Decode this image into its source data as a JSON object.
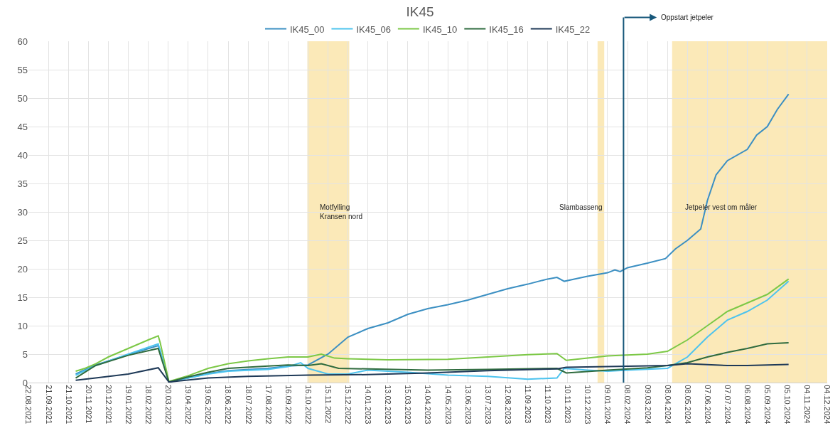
{
  "chart_data": {
    "type": "line",
    "title": "IK45",
    "series": [
      {
        "name": "IK45_00",
        "color": "#3b8fc2",
        "x": [
          "2021-11-01",
          "2021-12-01",
          "2022-01-19",
          "2022-03-05",
          "2022-03-08",
          "2022-03-21",
          "2022-04-19",
          "2022-05-19",
          "2022-06-18",
          "2022-08-17",
          "2022-09-16",
          "2022-10-16",
          "2022-11-15",
          "2022-12-15",
          "2023-01-14",
          "2023-02-13",
          "2023-03-15",
          "2023-04-14",
          "2023-05-14",
          "2023-06-13",
          "2023-07-13",
          "2023-08-12",
          "2023-09-11",
          "2023-10-11",
          "2023-10-25",
          "2023-11-05",
          "2023-11-20",
          "2023-12-10",
          "2024-01-09",
          "2024-01-20",
          "2024-01-28",
          "2024-02-08",
          "2024-03-09",
          "2024-04-05",
          "2024-04-20",
          "2024-05-08",
          "2024-05-28",
          "2024-06-07",
          "2024-06-20",
          "2024-07-07",
          "2024-08-06",
          "2024-08-20",
          "2024-09-05",
          "2024-09-20",
          "2024-10-07"
        ],
        "values": [
          1.5,
          3.1,
          4.9,
          6.5,
          5.5,
          0.1,
          0.8,
          1.6,
          2.1,
          2.5,
          2.9,
          3.1,
          5,
          8,
          9.5,
          10.5,
          12,
          13,
          13.7,
          14.5,
          15.5,
          16.5,
          17.3,
          18.2,
          18.5,
          17.8,
          18.2,
          18.7,
          19.3,
          19.8,
          19.5,
          20.2,
          21,
          21.8,
          23.5,
          25,
          27,
          32,
          36.5,
          39,
          41,
          43.5,
          45,
          48,
          50.7
        ]
      },
      {
        "name": "IK45_06",
        "color": "#4cc3ee",
        "x": [
          "2021-11-01",
          "2021-12-01",
          "2022-01-19",
          "2022-03-05",
          "2022-03-21",
          "2022-04-19",
          "2022-05-19",
          "2022-06-18",
          "2022-08-17",
          "2022-09-16",
          "2022-10-05",
          "2022-10-16",
          "2022-11-15",
          "2022-12-15",
          "2023-01-14",
          "2023-03-15",
          "2023-05-14",
          "2023-07-13",
          "2023-09-11",
          "2023-10-25",
          "2023-11-05",
          "2023-12-10",
          "2024-01-09",
          "2024-02-08",
          "2024-04-08",
          "2024-05-08",
          "2024-06-07",
          "2024-07-07",
          "2024-08-06",
          "2024-09-05",
          "2024-10-07"
        ],
        "values": [
          1.3,
          3,
          5,
          6.8,
          0.1,
          0.8,
          1.5,
          2,
          2.3,
          2.8,
          3.5,
          2.5,
          1.5,
          1.5,
          2.2,
          1.8,
          1.3,
          1.1,
          0.6,
          0.8,
          2.5,
          2.2,
          2,
          2.2,
          2.5,
          4.5,
          8,
          11,
          12.5,
          14.5,
          17.8
        ]
      },
      {
        "name": "IK45_10",
        "color": "#7cc846",
        "x": [
          "2021-11-01",
          "2021-11-15",
          "2021-12-01",
          "2021-12-20",
          "2022-01-19",
          "2022-02-18",
          "2022-03-05",
          "2022-03-08",
          "2022-03-21",
          "2022-04-19",
          "2022-05-19",
          "2022-06-18",
          "2022-07-18",
          "2022-08-17",
          "2022-09-16",
          "2022-10-16",
          "2022-11-05",
          "2022-11-25",
          "2022-12-15",
          "2023-02-13",
          "2023-05-14",
          "2023-07-13",
          "2023-09-11",
          "2023-10-25",
          "2023-11-08",
          "2023-12-10",
          "2024-01-09",
          "2024-03-09",
          "2024-04-08",
          "2024-05-08",
          "2024-06-07",
          "2024-07-07",
          "2024-08-06",
          "2024-09-05",
          "2024-10-07"
        ],
        "values": [
          2,
          2.5,
          3.3,
          4.5,
          6,
          7.5,
          8.2,
          7,
          0.2,
          1.2,
          2.5,
          3.3,
          3.8,
          4.2,
          4.5,
          4.5,
          5,
          4.3,
          4.2,
          4,
          4.1,
          4.5,
          4.9,
          5.1,
          3.9,
          4.3,
          4.7,
          5,
          5.5,
          7.5,
          10,
          12.5,
          14,
          15.5,
          18.2
        ]
      },
      {
        "name": "IK45_16",
        "color": "#2f6b3e",
        "x": [
          "2021-11-01",
          "2021-12-01",
          "2022-01-19",
          "2022-03-05",
          "2022-03-21",
          "2022-04-19",
          "2022-05-19",
          "2022-06-18",
          "2022-08-17",
          "2022-09-16",
          "2022-10-16",
          "2022-11-05",
          "2022-12-01",
          "2023-01-14",
          "2023-04-14",
          "2023-07-13",
          "2023-10-25",
          "2023-11-08",
          "2024-01-09",
          "2024-03-09",
          "2024-04-08",
          "2024-05-08",
          "2024-06-07",
          "2024-07-07",
          "2024-08-06",
          "2024-09-05",
          "2024-10-07"
        ],
        "values": [
          0.8,
          3,
          4.8,
          6,
          0.1,
          1,
          1.8,
          2.5,
          2.9,
          3.1,
          3,
          3.3,
          2.5,
          2.4,
          2.2,
          2.3,
          2.5,
          1.7,
          2.2,
          2.6,
          3,
          3.5,
          4.5,
          5.3,
          6,
          6.8,
          7
        ]
      },
      {
        "name": "IK45_22",
        "color": "#1e3957",
        "x": [
          "2021-11-01",
          "2021-12-01",
          "2022-01-19",
          "2022-03-05",
          "2022-03-21",
          "2022-05-19",
          "2022-07-18",
          "2022-10-16",
          "2023-01-14",
          "2023-04-14",
          "2023-07-13",
          "2023-10-25",
          "2023-11-08",
          "2024-01-09",
          "2024-04-08",
          "2024-05-08",
          "2024-07-07",
          "2024-08-06",
          "2024-10-07"
        ],
        "values": [
          0.4,
          0.8,
          1.5,
          2.6,
          0.1,
          0.8,
          1.1,
          1.3,
          1.4,
          1.7,
          2.1,
          2.4,
          2.7,
          2.8,
          3,
          3.3,
          3,
          3,
          3.2
        ]
      }
    ],
    "xlim": [
      "2021-08-22",
      "2024-12-04"
    ],
    "xticks": [
      {
        "value": "2021-08-22",
        "label": "22.08.2021"
      },
      {
        "value": "2021-09-21",
        "label": "21.09.2021"
      },
      {
        "value": "2021-10-21",
        "label": "21.10.2021"
      },
      {
        "value": "2021-11-20",
        "label": "20.11.2021"
      },
      {
        "value": "2021-12-20",
        "label": "20.12.2021"
      },
      {
        "value": "2022-01-19",
        "label": "19.01.2022"
      },
      {
        "value": "2022-02-18",
        "label": "18.02.2022"
      },
      {
        "value": "2022-03-20",
        "label": "20.03.2022"
      },
      {
        "value": "2022-04-19",
        "label": "19.04.2022"
      },
      {
        "value": "2022-05-19",
        "label": "19.05.2022"
      },
      {
        "value": "2022-06-18",
        "label": "18.06.2022"
      },
      {
        "value": "2022-07-18",
        "label": "18.07.2022"
      },
      {
        "value": "2022-08-17",
        "label": "17.08.2022"
      },
      {
        "value": "2022-09-16",
        "label": "16.09.2022"
      },
      {
        "value": "2022-10-16",
        "label": "16.10.2022"
      },
      {
        "value": "2022-11-15",
        "label": "15.11.2022"
      },
      {
        "value": "2022-12-15",
        "label": "15.12.2022"
      },
      {
        "value": "2023-01-14",
        "label": "14.01.2023"
      },
      {
        "value": "2023-02-13",
        "label": "13.02.2023"
      },
      {
        "value": "2023-03-15",
        "label": "15.03.2023"
      },
      {
        "value": "2023-04-14",
        "label": "14.04.2023"
      },
      {
        "value": "2023-05-14",
        "label": "14.05.2023"
      },
      {
        "value": "2023-06-13",
        "label": "13.06.2023"
      },
      {
        "value": "2023-07-13",
        "label": "13.07.2023"
      },
      {
        "value": "2023-08-12",
        "label": "12.08.2023"
      },
      {
        "value": "2023-09-11",
        "label": "11.09.2023"
      },
      {
        "value": "2023-10-11",
        "label": "11.10.2023"
      },
      {
        "value": "2023-11-10",
        "label": "10.11.2023"
      },
      {
        "value": "2023-12-10",
        "label": "10.12.2023"
      },
      {
        "value": "2024-01-09",
        "label": "09.01.2024"
      },
      {
        "value": "2024-02-08",
        "label": "08.02.2024"
      },
      {
        "value": "2024-03-09",
        "label": "09.03.2024"
      },
      {
        "value": "2024-04-08",
        "label": "08.04.2024"
      },
      {
        "value": "2024-05-08",
        "label": "08.05.2024"
      },
      {
        "value": "2024-06-07",
        "label": "07.06.2024"
      },
      {
        "value": "2024-07-07",
        "label": "07.07.2024"
      },
      {
        "value": "2024-08-06",
        "label": "06.08.2024"
      },
      {
        "value": "2024-09-05",
        "label": "05.09.2024"
      },
      {
        "value": "2024-10-05",
        "label": "05.10.2024"
      },
      {
        "value": "2024-11-04",
        "label": "04.11.2024"
      },
      {
        "value": "2024-12-04",
        "label": "04.12.2024"
      }
    ],
    "ylim": [
      0,
      60
    ],
    "yticks": [
      0,
      5,
      10,
      15,
      20,
      25,
      30,
      35,
      40,
      45,
      50,
      55,
      60
    ],
    "grid": true,
    "legend": "top",
    "bands": [
      {
        "axis": "x",
        "from": "2022-10-15",
        "to": "2022-12-17",
        "label": "Motfylling\nKransen nord",
        "color": "#fbe7b0"
      },
      {
        "axis": "x",
        "from": "2023-12-25",
        "to": "2024-01-04",
        "label": "Slambasseng",
        "color": "#fbe7b0"
      },
      {
        "axis": "x",
        "from": "2024-04-15",
        "to": "2024-12-04",
        "label": "Jetpeler vest om måler",
        "color": "#fbe7b0"
      }
    ],
    "ref_lines": [
      {
        "axis": "x",
        "value": "2024-02-02",
        "label": "Oppstart jetpeler",
        "color": "#16577a"
      }
    ]
  }
}
